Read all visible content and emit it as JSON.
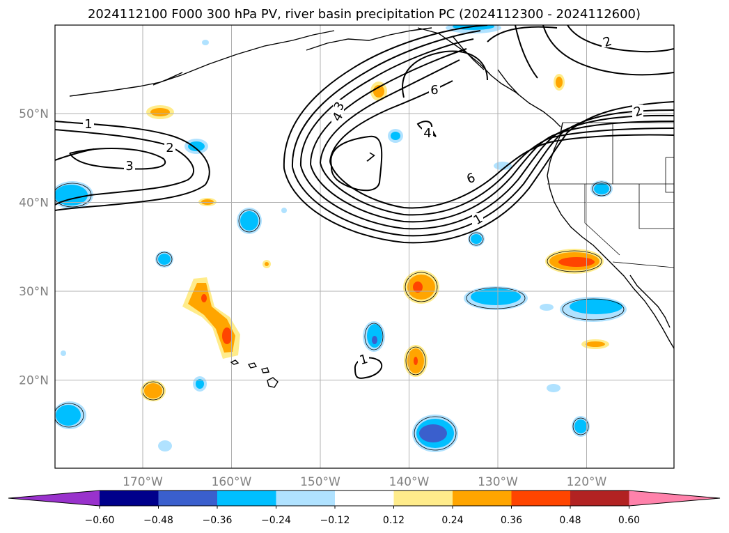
{
  "title": "2024112100 F000 300 hPa PV, river basin precipitation PC (2024112300 - 2024112600)",
  "map": {
    "lat_ticks": [
      {
        "lat": 50,
        "label": "50°N"
      },
      {
        "lat": 40,
        "label": "40°N"
      },
      {
        "lat": 30,
        "label": "30°N"
      },
      {
        "lat": 20,
        "label": "20°N"
      }
    ],
    "lon_ticks": [
      {
        "lon": -170,
        "label": "170°W"
      },
      {
        "lon": -160,
        "label": "160°W"
      },
      {
        "lon": -150,
        "label": "150°W"
      },
      {
        "lon": -140,
        "label": "140°W"
      },
      {
        "lon": -130,
        "label": "130°W"
      },
      {
        "lon": -120,
        "label": "120°W"
      }
    ],
    "pv_contour_labels": [
      "1",
      "2",
      "3",
      "4",
      "6",
      "7"
    ]
  },
  "colorbar": {
    "tick_labels": [
      "−0.60",
      "−0.48",
      "−0.36",
      "−0.24",
      "−0.12",
      "0.12",
      "0.24",
      "0.36",
      "0.48",
      "0.60"
    ],
    "colors": [
      "#9932cc",
      "#00008b",
      "#3a5fcd",
      "#00bfff",
      "#b0e2ff",
      "#ffffff",
      "#ffec8b",
      "#ffa500",
      "#ff4500",
      "#b22222",
      "#ff82ab"
    ]
  },
  "colors": {
    "grid": "#b0b0b0",
    "contour": "#000000",
    "coast": "#000000"
  }
}
